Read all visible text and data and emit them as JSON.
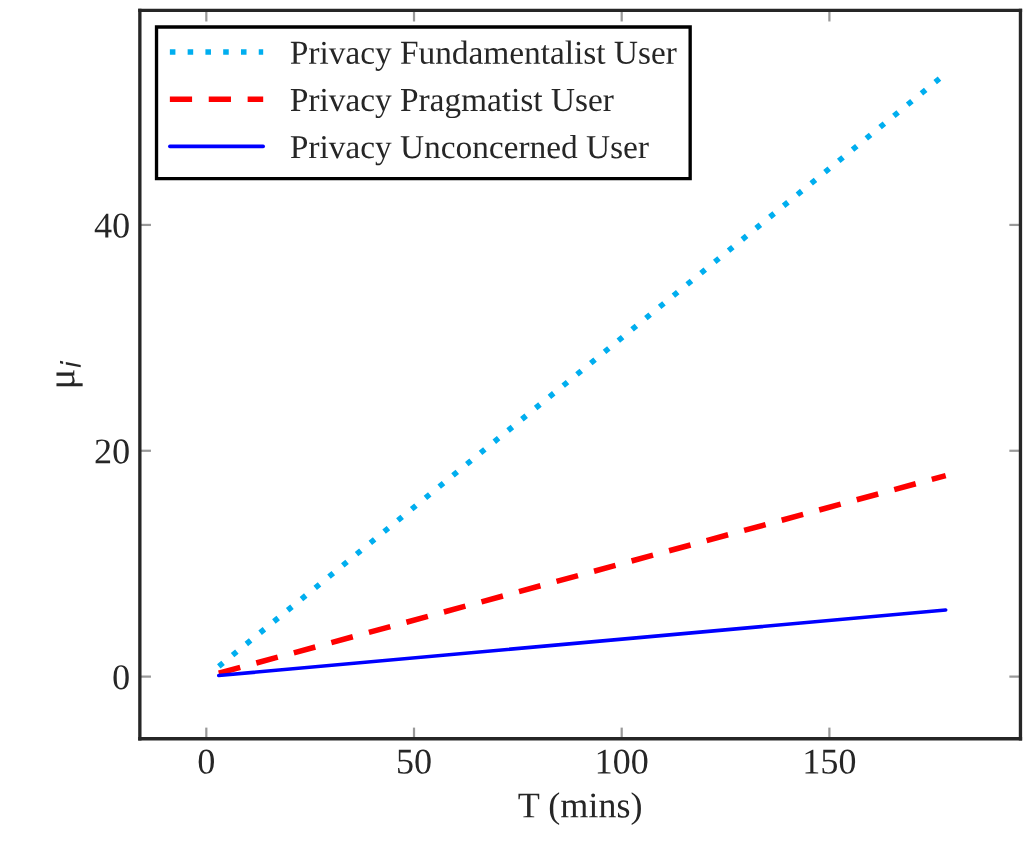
{
  "chart_data": {
    "type": "line",
    "xlabel": "T (mins)",
    "ylabel": "μ$_{i}$",
    "x": [
      3,
      178
    ],
    "series": [
      {
        "name": "Privacy Fundamentalist User",
        "color": "#00aeef",
        "values": [
          0.9,
          53.4
        ],
        "line_style": "dotted"
      },
      {
        "name": "Privacy Pragmatist User",
        "color": "#ff0000",
        "values": [
          0.3,
          17.8
        ],
        "line_style": "dashed"
      },
      {
        "name": "Privacy Unconcerned User",
        "color": "#0000ff",
        "values": [
          0.1,
          5.9
        ],
        "line_style": "solid"
      }
    ],
    "xlim": [
      -16,
      196
    ],
    "ylim": [
      -5.5,
      59
    ],
    "xticks": [
      0,
      50,
      100,
      150
    ],
    "yticks": [
      0,
      20,
      40
    ],
    "grid": false,
    "legend": "top left",
    "marker": "none"
  }
}
